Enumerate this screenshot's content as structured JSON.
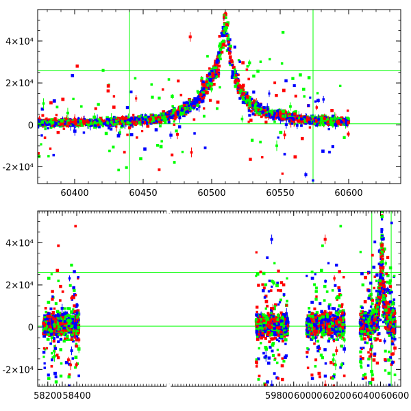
{
  "chart_data": [
    {
      "type": "scatter",
      "panel": "top",
      "xlim": [
        60373,
        60638
      ],
      "ylim": [
        -28000,
        55000
      ],
      "x_ticks": [
        60400,
        60450,
        60500,
        60550,
        60600
      ],
      "y_ticks": [
        -20000,
        0,
        20000,
        40000
      ],
      "y_tick_labels": [
        "-2×10⁴",
        "0",
        "2×10⁴",
        "4×10⁴"
      ],
      "reference_lines": {
        "vertical": [
          60440,
          60574
        ],
        "horizontal": [
          500,
          26000
        ]
      },
      "series_colors": {
        "red": "#ff0000",
        "blue": "#0000ff",
        "green": "#00ff00"
      },
      "light_curve": {
        "peak_x": 60510,
        "peak_y": 50000,
        "profile": [
          [
            60373,
            1000
          ],
          [
            60420,
            1200
          ],
          [
            60460,
            2500
          ],
          [
            60480,
            7000
          ],
          [
            60490,
            12000
          ],
          [
            60500,
            22000
          ],
          [
            60505,
            30000
          ],
          [
            60508,
            40000
          ],
          [
            60510,
            50000
          ],
          [
            60512,
            40000
          ],
          [
            60515,
            28000
          ],
          [
            60520,
            17000
          ],
          [
            60530,
            9000
          ],
          [
            60545,
            5000
          ],
          [
            60570,
            2500
          ],
          [
            60600,
            1200
          ]
        ],
        "data_end_x": 60600
      }
    },
    {
      "type": "scatter",
      "panel": "bottom",
      "xlim": [
        58130,
        60640
      ],
      "ylim": [
        -28000,
        55000
      ],
      "x_ticks": [
        58200,
        58300,
        58400,
        59800,
        59900,
        60000,
        60100,
        60200,
        60300,
        60400,
        60500,
        60600
      ],
      "x_tick_labels": [
        "58200",
        "",
        "58400",
        "59800",
        "",
        "60000",
        "",
        "60200",
        "",
        "60400",
        "",
        "60600"
      ],
      "y_ticks": [
        -20000,
        0,
        20000,
        40000
      ],
      "y_tick_labels": [
        "-2×10⁴",
        "0",
        "2×10⁴",
        "4×10⁴"
      ],
      "reference_lines": {
        "vertical": [
          60440,
          60574
        ],
        "horizontal": [
          500,
          26000
        ]
      },
      "axis_break": {
        "before": 58440,
        "after": 59630
      },
      "seasons": [
        [
          58170,
          58415
        ],
        [
          59640,
          59860
        ],
        [
          59990,
          60250
        ],
        [
          60360,
          60600
        ]
      ],
      "series_colors": {
        "red": "#ff0000",
        "blue": "#0000ff",
        "green": "#00ff00"
      }
    }
  ]
}
